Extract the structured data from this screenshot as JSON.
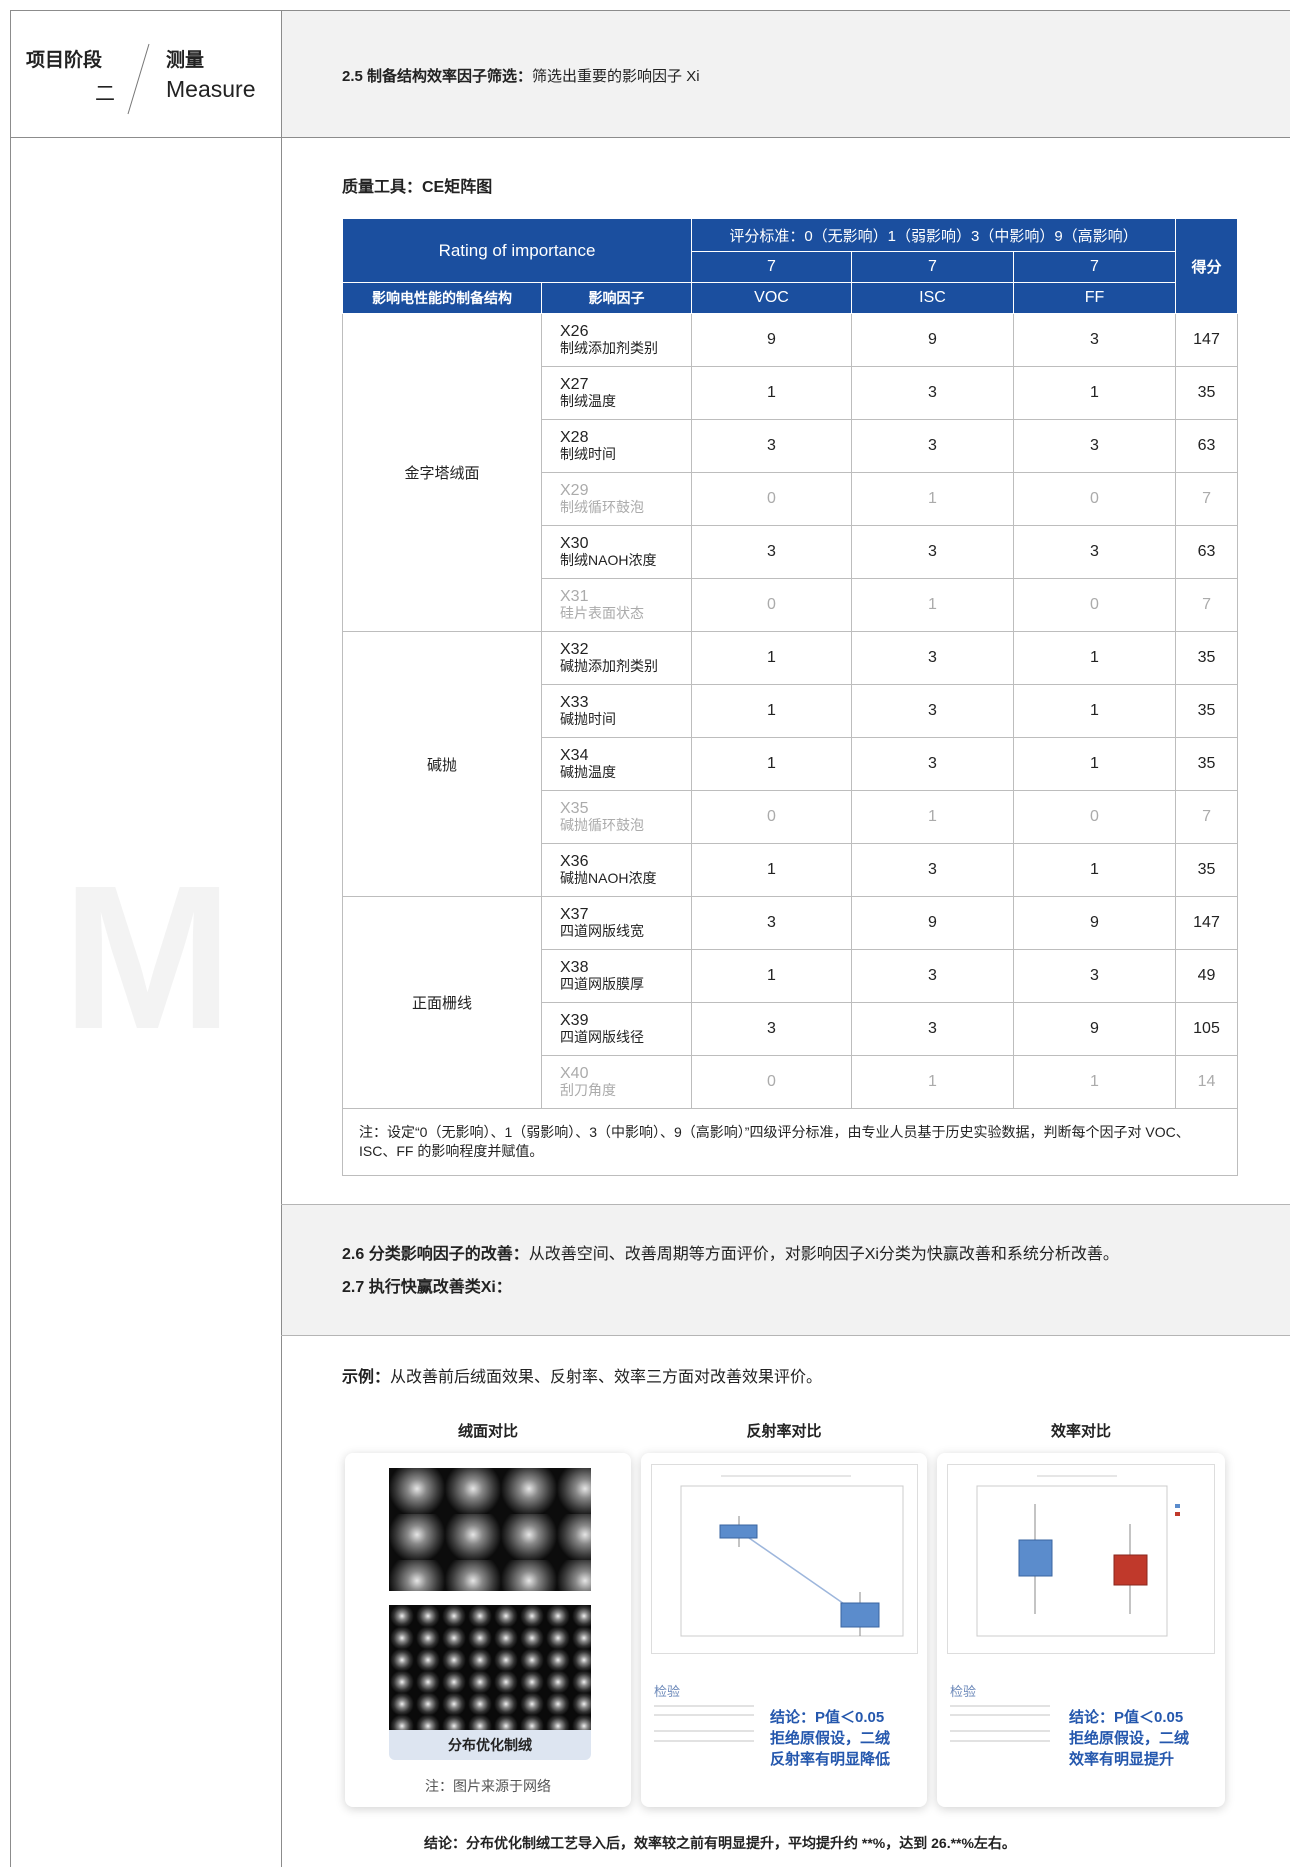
{
  "header": {
    "stage_label": "项目阶段",
    "stage_num": "二",
    "phase_cn": "测量",
    "phase_en": "Measure",
    "section_bold": "2.5 制备结构效率因子筛选：",
    "section_text": "筛选出重要的影响因子 Xi"
  },
  "sidebar_letter": "M",
  "tool_title": "质量工具：CE矩阵图",
  "table": {
    "rating_label": "Rating of importance",
    "criteria": "评分标准：0（无影响）1（弱影响）3（中影响）9（高影响）",
    "weights": [
      7,
      7,
      7
    ],
    "score_header": "得分",
    "col_headers": [
      "影响电性能的制备结构",
      "影响因子",
      "VOC",
      "ISC",
      "FF"
    ],
    "groups": [
      {
        "name": "金字塔绒面",
        "rows": [
          {
            "code": "X26",
            "name": "制绒添加剂类别",
            "scores": [
              9,
              9,
              3
            ],
            "total": 147,
            "muted": false
          },
          {
            "code": "X27",
            "name": "制绒温度",
            "scores": [
              1,
              3,
              1
            ],
            "total": 35,
            "muted": false
          },
          {
            "code": "X28",
            "name": "制绒时间",
            "scores": [
              3,
              3,
              3
            ],
            "total": 63,
            "muted": false
          },
          {
            "code": "X29",
            "name": "制绒循环鼓泡",
            "scores": [
              0,
              1,
              0
            ],
            "total": 7,
            "muted": true
          },
          {
            "code": "X30",
            "name": "制绒NAOH浓度",
            "scores": [
              3,
              3,
              3
            ],
            "total": 63,
            "muted": false
          },
          {
            "code": "X31",
            "name": "硅片表面状态",
            "scores": [
              0,
              1,
              0
            ],
            "total": 7,
            "muted": true
          }
        ]
      },
      {
        "name": "碱抛",
        "rows": [
          {
            "code": "X32",
            "name": "碱抛添加剂类别",
            "scores": [
              1,
              3,
              1
            ],
            "total": 35,
            "muted": false
          },
          {
            "code": "X33",
            "name": "碱抛时间",
            "scores": [
              1,
              3,
              1
            ],
            "total": 35,
            "muted": false
          },
          {
            "code": "X34",
            "name": "碱抛温度",
            "scores": [
              1,
              3,
              1
            ],
            "total": 35,
            "muted": false
          },
          {
            "code": "X35",
            "name": "碱抛循环鼓泡",
            "scores": [
              0,
              1,
              0
            ],
            "total": 7,
            "muted": true
          },
          {
            "code": "X36",
            "name": "碱抛NAOH浓度",
            "scores": [
              1,
              3,
              1
            ],
            "total": 35,
            "muted": false
          }
        ]
      },
      {
        "name": "正面栅线",
        "rows": [
          {
            "code": "X37",
            "name": "四道网版线宽",
            "scores": [
              3,
              9,
              9
            ],
            "total": 147,
            "muted": false
          },
          {
            "code": "X38",
            "name": "四道网版膜厚",
            "scores": [
              1,
              3,
              3
            ],
            "total": 49,
            "muted": false
          },
          {
            "code": "X39",
            "name": "四道网版线径",
            "scores": [
              3,
              3,
              9
            ],
            "total": 105,
            "muted": false
          },
          {
            "code": "X40",
            "name": "刮刀角度",
            "scores": [
              0,
              1,
              1
            ],
            "total": 14,
            "muted": true
          }
        ]
      }
    ],
    "note": "注：设定“0（无影响）、1（弱影响）、3（中影响）、9（高影响）”四级评分标准，由专业人员基于历史实验数据，判断每个因子对 VOC、ISC、FF 的影响程度并赋值。"
  },
  "improvement": {
    "s26_bold": "2.6 分类影响因子的改善：",
    "s26_text": "从改善空间、改善周期等方面评价，对影响因子Xi分类为快赢改善和系统分析改善。",
    "s27_bold": "2.7 执行快赢改善类Xi："
  },
  "example": {
    "bold": "示例：",
    "text": "从改善前后绒面效果、反射率、效率三方面对改善效果评价。",
    "columns": [
      "绒面对比",
      "反射率对比",
      "效率对比"
    ],
    "texture_caption": "分布优化制绒",
    "texture_note": "注：图片来源于网络",
    "test_label": "检验",
    "reflect_conclusion": [
      "结论：P值＜0.05",
      "拒绝原假设，二绒",
      "反射率有明显降低"
    ],
    "eff_conclusion": [
      "结论：P值＜0.05",
      "拒绝原假设，二绒",
      "效率有明显提升"
    ],
    "final": "结论：分布优化制绒工艺导入后，效率较之前有明显提升，平均提升约 **%，达到 26.**%左右。"
  }
}
